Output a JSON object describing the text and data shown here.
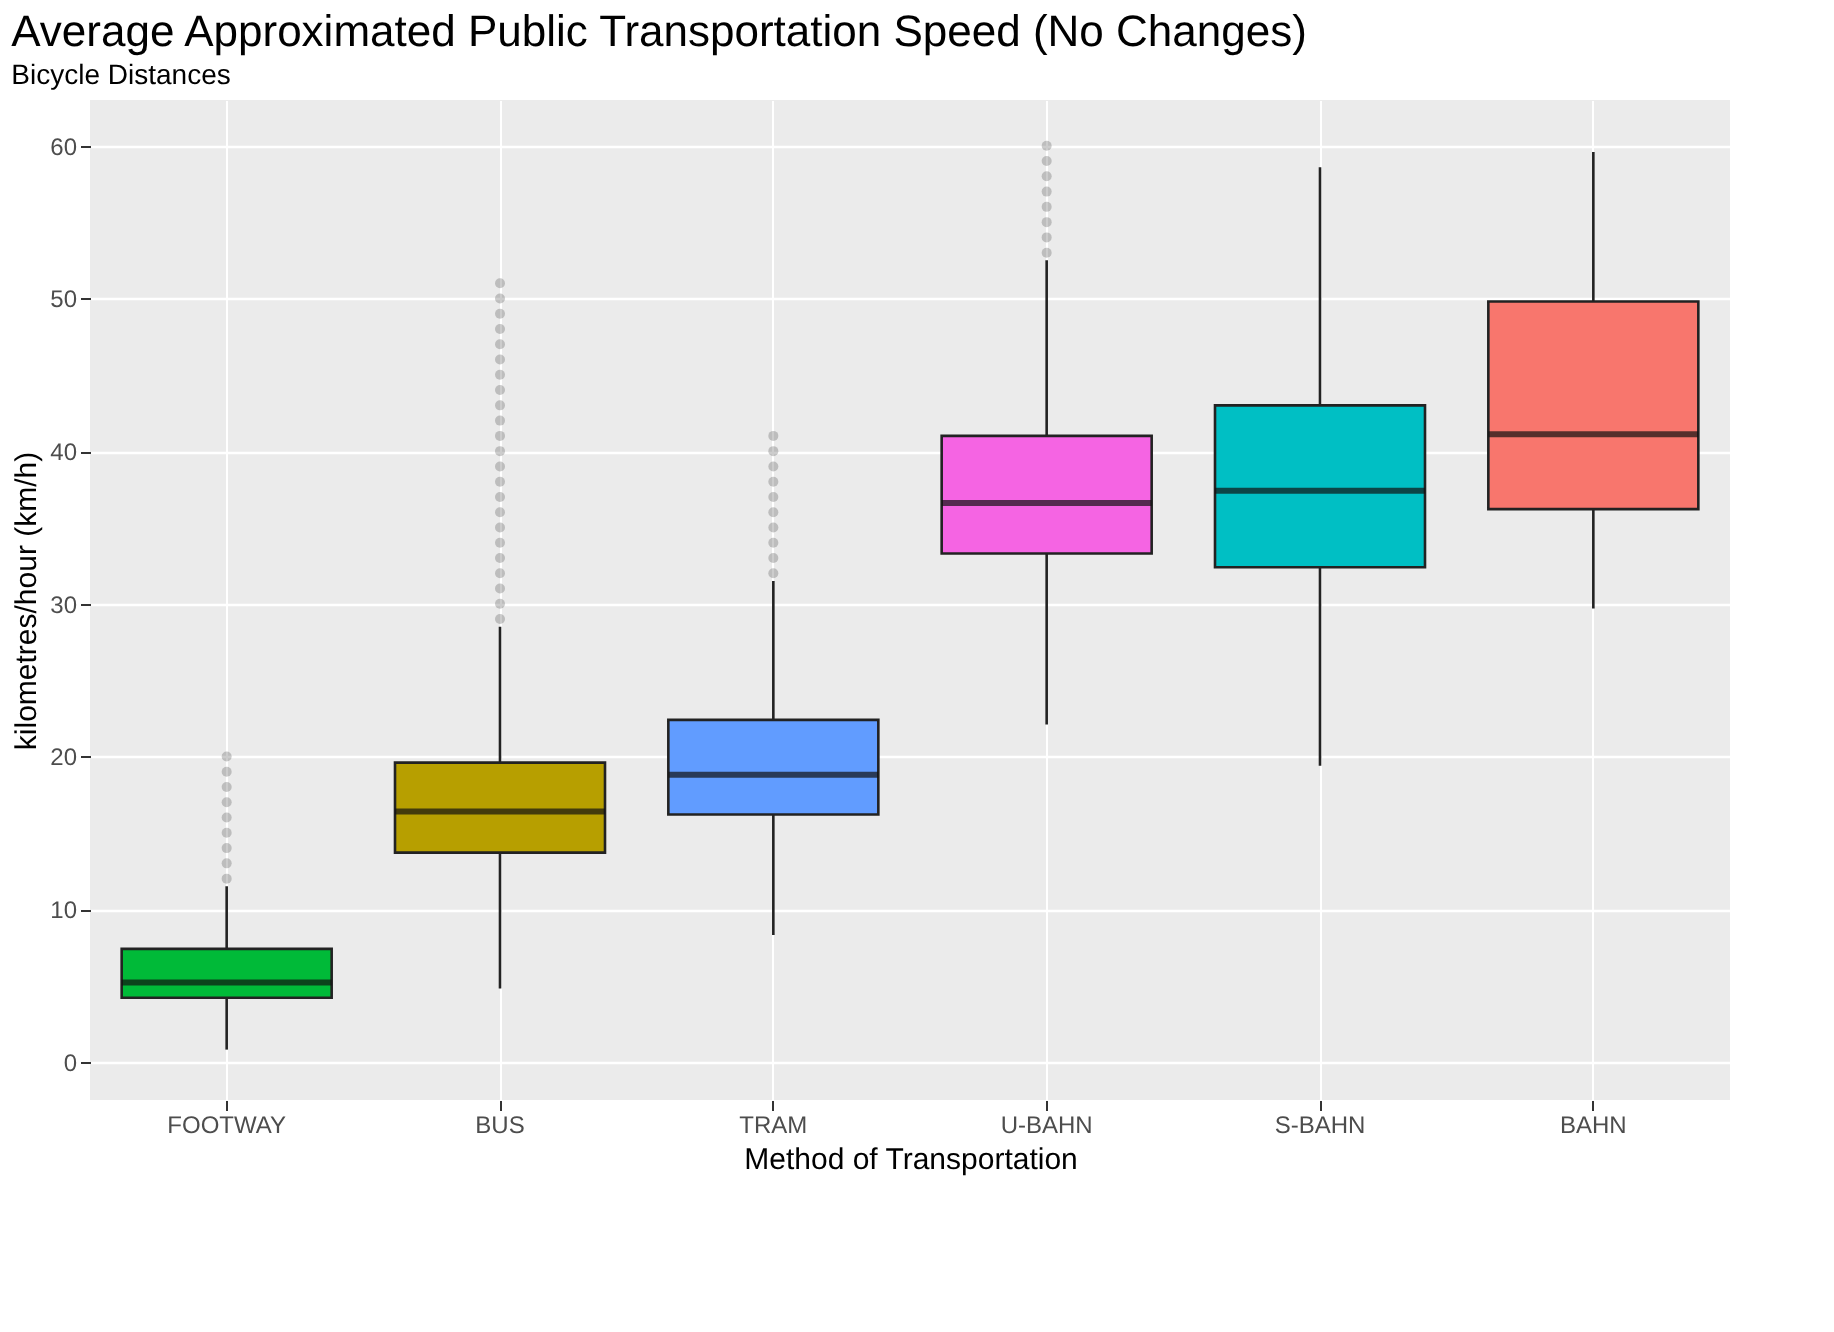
{
  "chart_data": {
    "type": "box",
    "title": "Average Approximated Public Transportation Speed (No Changes)",
    "subtitle": "Bicycle Distances",
    "xlabel": "Method of Transportation",
    "ylabel": "kilometres/hour (km/h)",
    "categories": [
      "FOOTWAY",
      "BUS",
      "TRAM",
      "U-BAHN",
      "S-BAHN",
      "BAHN"
    ],
    "colors": [
      "#00ba38",
      "#b79f00",
      "#619cff",
      "#f564e3",
      "#00bfc4",
      "#f8766d"
    ],
    "boxes": [
      {
        "low": 0.8,
        "q1": 4.2,
        "median": 5.2,
        "q3": 7.4,
        "high": 11.5,
        "outliers": [
          12,
          13,
          14,
          15,
          16,
          17,
          18,
          19,
          20
        ]
      },
      {
        "low": 4.8,
        "q1": 13.7,
        "median": 16.4,
        "q3": 19.6,
        "high": 28.5,
        "outliers": [
          29,
          30,
          31,
          32,
          33,
          34,
          35,
          36,
          37,
          38,
          39,
          40,
          41,
          42,
          43,
          44,
          45,
          46,
          47,
          48,
          49,
          50,
          51
        ]
      },
      {
        "low": 8.3,
        "q1": 16.2,
        "median": 18.8,
        "q3": 22.4,
        "high": 31.5,
        "outliers": [
          32,
          33,
          34,
          35,
          36,
          37,
          38,
          39,
          40,
          41
        ]
      },
      {
        "low": 22.1,
        "q1": 33.3,
        "median": 36.6,
        "q3": 41.0,
        "high": 52.5,
        "outliers": [
          53,
          54,
          55,
          56,
          57,
          58,
          59,
          60
        ]
      },
      {
        "low": 19.4,
        "q1": 32.4,
        "median": 37.4,
        "q3": 43.0,
        "high": 58.6
      },
      {
        "low": 29.7,
        "q1": 36.2,
        "median": 41.1,
        "q3": 49.8,
        "high": 59.6
      }
    ],
    "ylim": [
      -2.5,
      63
    ],
    "yticks": [
      0,
      10,
      20,
      30,
      40,
      50,
      60
    ],
    "grid": true,
    "legend": false
  }
}
